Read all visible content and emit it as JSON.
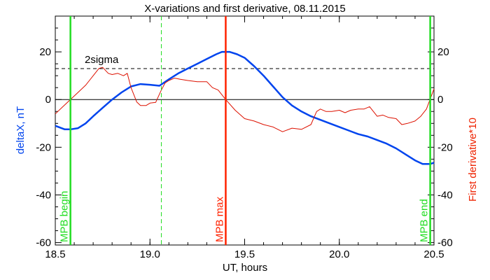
{
  "chart_data": {
    "type": "line",
    "title": "X-variations and first derivative, 08.11.2015",
    "xlabel": "UT, hours",
    "ylabel_left": "deltaX, nT",
    "ylabel_right": "First derivative*10",
    "xlim": [
      18.5,
      20.5
    ],
    "ylim": [
      -61,
      35
    ],
    "x_ticks": [
      18.5,
      19.0,
      19.5,
      20.0,
      20.5
    ],
    "x_tick_labels": [
      "18.5",
      "19.0",
      "19.5",
      "20.0",
      "20.5"
    ],
    "y_ticks": [
      20,
      0,
      -20,
      -40,
      -60
    ],
    "y_tick_labels": [
      "20",
      "0",
      "-20",
      "-40",
      "-60"
    ],
    "threshold": {
      "label": "2sigma",
      "y": 13
    },
    "colors": {
      "deltaX": "#0044ee",
      "derivative": "#dd1100",
      "mpb": "#22dd22",
      "max": "#ff2200",
      "axis_left_label": "#0044ee",
      "axis_right_label": "#ee2200"
    },
    "series": [
      {
        "key": "deltaX",
        "x": [
          18.5,
          18.55,
          18.58,
          18.62,
          18.66,
          18.7,
          18.75,
          18.8,
          18.85,
          18.9,
          18.95,
          19.0,
          19.05,
          19.1,
          19.15,
          19.2,
          19.25,
          19.3,
          19.35,
          19.38,
          19.42,
          19.46,
          19.5,
          19.55,
          19.6,
          19.65,
          19.7,
          19.75,
          19.8,
          19.85,
          19.9,
          19.95,
          20.0,
          20.05,
          20.1,
          20.15,
          20.2,
          20.25,
          20.3,
          20.35,
          20.4,
          20.44,
          20.48,
          20.5
        ],
        "y": [
          -11,
          -12.5,
          -12.5,
          -12,
          -10,
          -7,
          -3.5,
          0,
          3,
          5.5,
          6.5,
          6.2,
          5.8,
          8.5,
          11,
          13,
          15,
          17,
          19,
          20,
          20,
          19,
          17.5,
          14,
          10,
          5.5,
          1,
          -2.5,
          -5,
          -7,
          -8.5,
          -10,
          -11.5,
          -13,
          -14.5,
          -15.5,
          -17,
          -18.5,
          -20.5,
          -23,
          -25.5,
          -27,
          -27,
          -26.5
        ]
      },
      {
        "key": "derivative",
        "x": [
          18.5,
          18.54,
          18.58,
          18.62,
          18.66,
          18.7,
          18.73,
          18.75,
          18.78,
          18.8,
          18.83,
          18.86,
          18.88,
          18.9,
          18.93,
          18.95,
          18.98,
          19.0,
          19.03,
          19.06,
          19.08,
          19.1,
          19.13,
          19.16,
          19.2,
          19.25,
          19.3,
          19.33,
          19.36,
          19.4,
          19.45,
          19.5,
          19.55,
          19.6,
          19.65,
          19.7,
          19.75,
          19.8,
          19.85,
          19.88,
          19.9,
          19.93,
          19.96,
          20.0,
          20.03,
          20.06,
          20.1,
          20.13,
          20.16,
          20.2,
          20.23,
          20.26,
          20.3,
          20.33,
          20.36,
          20.4,
          20.43,
          20.46,
          20.5
        ],
        "y": [
          -6,
          -3,
          0,
          3,
          6,
          10,
          13,
          13.5,
          11,
          10.5,
          11,
          10,
          11,
          5,
          -1,
          -2.5,
          -2.5,
          -1.5,
          -1.2,
          4,
          7,
          8,
          9,
          8.5,
          8,
          7.5,
          7.5,
          5,
          4,
          0,
          -4.5,
          -8,
          -9,
          -10.5,
          -11.5,
          -13.5,
          -12,
          -12.5,
          -10.5,
          -5,
          -4,
          -5,
          -5,
          -4.5,
          -5.5,
          -4.5,
          -4,
          -4,
          -3,
          -7,
          -6.5,
          -7.5,
          -8,
          -10.5,
          -10,
          -9,
          -7,
          -4,
          4.5
        ]
      }
    ],
    "markers": [
      {
        "label": "MPB begin",
        "x": 18.58,
        "style": "solid",
        "color": "#22dd22"
      },
      {
        "label": "",
        "x": 19.06,
        "style": "dashed",
        "color": "#22dd22"
      },
      {
        "label": "MPB max",
        "x": 19.4,
        "style": "solid",
        "color": "#ff2200"
      },
      {
        "label": "MPB end",
        "x": 20.48,
        "style": "solid",
        "color": "#22dd22"
      }
    ]
  }
}
